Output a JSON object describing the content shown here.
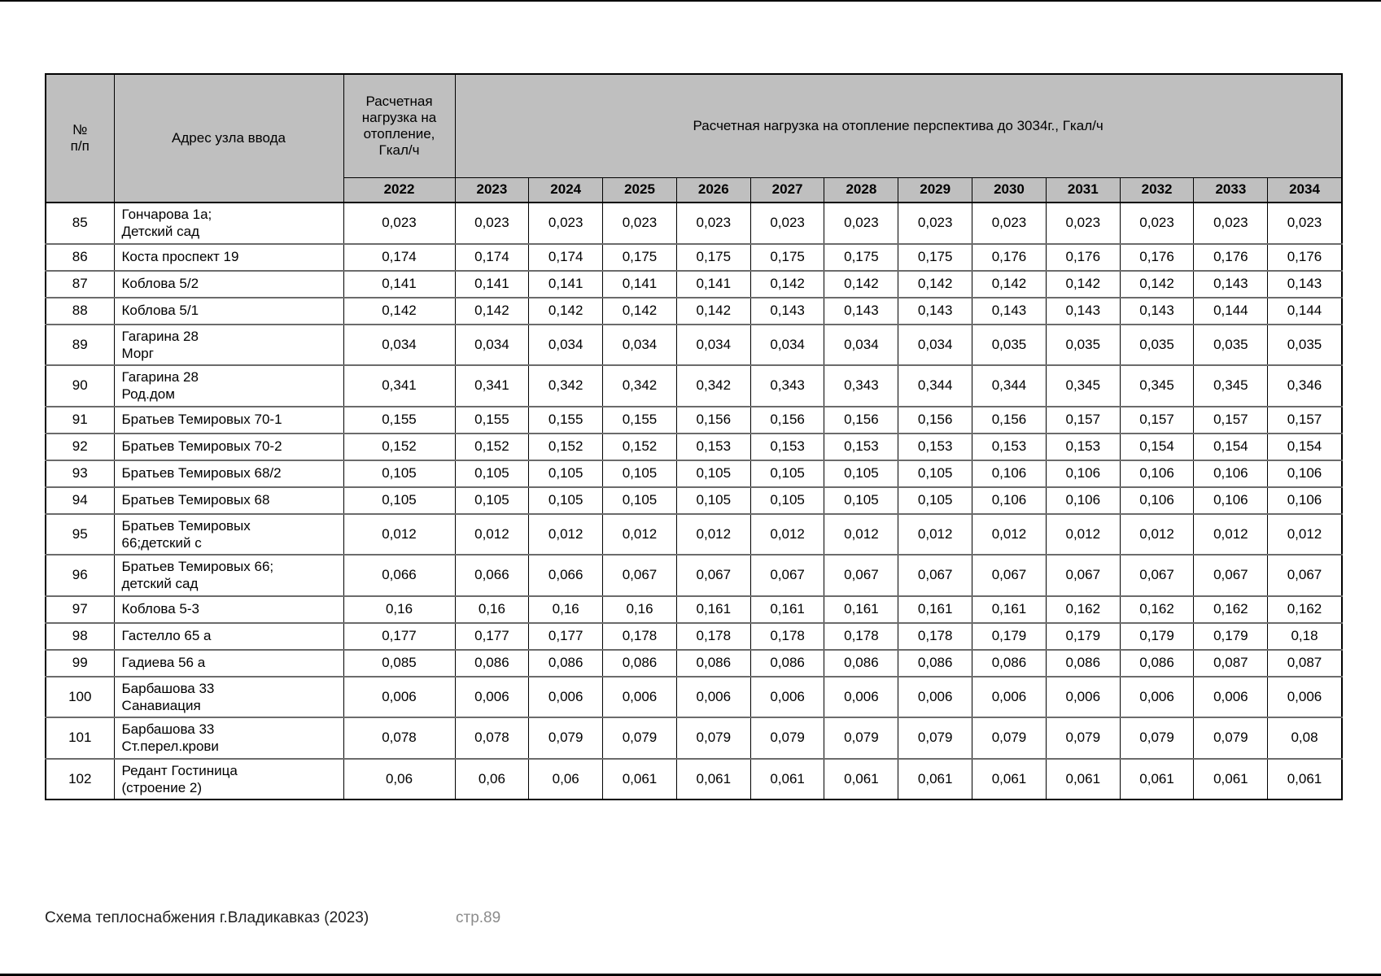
{
  "page": {
    "footer_left": "Схема теплоснабжения г.Владикавказ (2023)",
    "footer_page": "стр.89"
  },
  "table": {
    "colors": {
      "header_bg": "#bfbfbf",
      "border": "#000000",
      "row_separator": "#6b6b6b"
    },
    "header": {
      "col_num": "№\nп/п",
      "col_address": "Адрес узла ввода",
      "col_load_2022": "Расчетная нагрузка на отопление, Гкал/ч",
      "col_perspective": "Расчетная нагрузка на отопление перспектива до 3034г., Гкал/ч",
      "years": [
        "2022",
        "2023",
        "2024",
        "2025",
        "2026",
        "2027",
        "2028",
        "2029",
        "2030",
        "2031",
        "2032",
        "2033",
        "2034"
      ]
    },
    "rows": [
      {
        "num": "85",
        "address": "Гончарова 1а;\nДетский сад",
        "values": [
          "0,023",
          "0,023",
          "0,023",
          "0,023",
          "0,023",
          "0,023",
          "0,023",
          "0,023",
          "0,023",
          "0,023",
          "0,023",
          "0,023",
          "0,023"
        ]
      },
      {
        "num": "86",
        "address": "Коста проспект 19",
        "values": [
          "0,174",
          "0,174",
          "0,174",
          "0,175",
          "0,175",
          "0,175",
          "0,175",
          "0,175",
          "0,176",
          "0,176",
          "0,176",
          "0,176",
          "0,176"
        ]
      },
      {
        "num": "87",
        "address": "Коблова 5/2",
        "values": [
          "0,141",
          "0,141",
          "0,141",
          "0,141",
          "0,141",
          "0,142",
          "0,142",
          "0,142",
          "0,142",
          "0,142",
          "0,142",
          "0,143",
          "0,143"
        ]
      },
      {
        "num": "88",
        "address": "Коблова 5/1",
        "values": [
          "0,142",
          "0,142",
          "0,142",
          "0,142",
          "0,142",
          "0,143",
          "0,143",
          "0,143",
          "0,143",
          "0,143",
          "0,143",
          "0,144",
          "0,144"
        ]
      },
      {
        "num": "89",
        "address": "Гагарина 28\nМорг",
        "values": [
          "0,034",
          "0,034",
          "0,034",
          "0,034",
          "0,034",
          "0,034",
          "0,034",
          "0,034",
          "0,035",
          "0,035",
          "0,035",
          "0,035",
          "0,035"
        ]
      },
      {
        "num": "90",
        "address": "Гагарина 28\nРод.дом",
        "values": [
          "0,341",
          "0,341",
          "0,342",
          "0,342",
          "0,342",
          "0,343",
          "0,343",
          "0,344",
          "0,344",
          "0,345",
          "0,345",
          "0,345",
          "0,346"
        ]
      },
      {
        "num": "91",
        "address": "Братьев Темировых 70-1",
        "values": [
          "0,155",
          "0,155",
          "0,155",
          "0,155",
          "0,156",
          "0,156",
          "0,156",
          "0,156",
          "0,156",
          "0,157",
          "0,157",
          "0,157",
          "0,157"
        ]
      },
      {
        "num": "92",
        "address": "Братьев Темировых 70-2",
        "values": [
          "0,152",
          "0,152",
          "0,152",
          "0,152",
          "0,153",
          "0,153",
          "0,153",
          "0,153",
          "0,153",
          "0,153",
          "0,154",
          "0,154",
          "0,154"
        ]
      },
      {
        "num": "93",
        "address": "Братьев Темировых 68/2",
        "values": [
          "0,105",
          "0,105",
          "0,105",
          "0,105",
          "0,105",
          "0,105",
          "0,105",
          "0,105",
          "0,106",
          "0,106",
          "0,106",
          "0,106",
          "0,106"
        ]
      },
      {
        "num": "94",
        "address": "Братьев Темировых 68",
        "values": [
          "0,105",
          "0,105",
          "0,105",
          "0,105",
          "0,105",
          "0,105",
          "0,105",
          "0,105",
          "0,106",
          "0,106",
          "0,106",
          "0,106",
          "0,106"
        ]
      },
      {
        "num": "95",
        "address": "Братьев Темировых\n66;детский с",
        "values": [
          "0,012",
          "0,012",
          "0,012",
          "0,012",
          "0,012",
          "0,012",
          "0,012",
          "0,012",
          "0,012",
          "0,012",
          "0,012",
          "0,012",
          "0,012"
        ]
      },
      {
        "num": "96",
        "address": "Братьев Темировых 66;\nдетский сад",
        "values": [
          "0,066",
          "0,066",
          "0,066",
          "0,067",
          "0,067",
          "0,067",
          "0,067",
          "0,067",
          "0,067",
          "0,067",
          "0,067",
          "0,067",
          "0,067"
        ]
      },
      {
        "num": "97",
        "address": "Коблова 5-3",
        "values": [
          "0,16",
          "0,16",
          "0,16",
          "0,16",
          "0,161",
          "0,161",
          "0,161",
          "0,161",
          "0,161",
          "0,162",
          "0,162",
          "0,162",
          "0,162"
        ]
      },
      {
        "num": "98",
        "address": "Гастелло 65 а",
        "values": [
          "0,177",
          "0,177",
          "0,177",
          "0,178",
          "0,178",
          "0,178",
          "0,178",
          "0,178",
          "0,179",
          "0,179",
          "0,179",
          "0,179",
          "0,18"
        ]
      },
      {
        "num": "99",
        "address": "Гадиева 56 а",
        "values": [
          "0,085",
          "0,086",
          "0,086",
          "0,086",
          "0,086",
          "0,086",
          "0,086",
          "0,086",
          "0,086",
          "0,086",
          "0,086",
          "0,087",
          "0,087"
        ]
      },
      {
        "num": "100",
        "address": "Барбашова 33\nСанавиация",
        "values": [
          "0,006",
          "0,006",
          "0,006",
          "0,006",
          "0,006",
          "0,006",
          "0,006",
          "0,006",
          "0,006",
          "0,006",
          "0,006",
          "0,006",
          "0,006"
        ]
      },
      {
        "num": "101",
        "address": "Барбашова 33\nСт.перел.крови",
        "values": [
          "0,078",
          "0,078",
          "0,079",
          "0,079",
          "0,079",
          "0,079",
          "0,079",
          "0,079",
          "0,079",
          "0,079",
          "0,079",
          "0,079",
          "0,08"
        ]
      },
      {
        "num": "102",
        "address": "Редант Гостиница\n(строение 2)",
        "values": [
          "0,06",
          "0,06",
          "0,06",
          "0,061",
          "0,061",
          "0,061",
          "0,061",
          "0,061",
          "0,061",
          "0,061",
          "0,061",
          "0,061",
          "0,061"
        ]
      }
    ]
  }
}
